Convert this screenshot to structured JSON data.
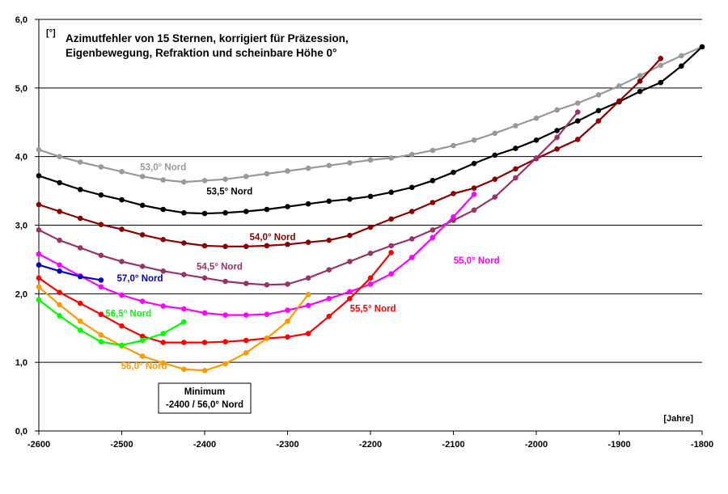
{
  "chart_data": {
    "type": "line",
    "title_lines": [
      "Azimutfehler von 15 Sternen, korrigiert für Präzession,",
      "Eigenbewegung, Refraktion und scheinbare Höhe 0°"
    ],
    "y_unit": "[°]",
    "x_unit": "[Jahre]",
    "xlim": [
      -2600,
      -1800
    ],
    "ylim": [
      0,
      6
    ],
    "x_ticks": [
      -2600,
      -2500,
      -2400,
      -2300,
      -2200,
      -2100,
      -2000,
      -1900,
      -1800
    ],
    "x_tick_labels": [
      "-2600",
      "-2500",
      "-2400",
      "-2300",
      "-2200",
      "-2100",
      "-2000",
      "-1900",
      "-1800"
    ],
    "y_ticks": [
      0,
      1,
      2,
      3,
      4,
      5,
      6
    ],
    "y_tick_labels": [
      "0,0",
      "1,0",
      "2,0",
      "3,0",
      "4,0",
      "5,0",
      "6,0"
    ],
    "grid": "horizontal",
    "annotation": {
      "lines": [
        "Minimum",
        "-2400 / 56,0° Nord"
      ],
      "x": -2400,
      "y": 0.88
    },
    "series": [
      {
        "name": "53,0° Nord",
        "color": "#999999",
        "x": [
          -2600,
          -2575,
          -2550,
          -2525,
          -2500,
          -2475,
          -2450,
          -2425,
          -2400,
          -2375,
          -2350,
          -2325,
          -2300,
          -2275,
          -2250,
          -2225,
          -2200,
          -2175,
          -2150,
          -2125,
          -2100,
          -2075,
          -2050,
          -2025,
          -2000,
          -1975,
          -1950,
          -1925,
          -1900,
          -1875,
          -1850,
          -1825,
          -1800
        ],
        "y": [
          4.1,
          4.0,
          3.92,
          3.85,
          3.78,
          3.71,
          3.66,
          3.63,
          3.65,
          3.67,
          3.71,
          3.75,
          3.79,
          3.83,
          3.87,
          3.91,
          3.95,
          3.98,
          4.03,
          4.09,
          4.16,
          4.24,
          4.34,
          4.45,
          4.56,
          4.68,
          4.78,
          4.9,
          5.03,
          5.18,
          5.33,
          5.47,
          5.6
        ]
      },
      {
        "name": "53,5° Nord",
        "color": "#000000",
        "x": [
          -2600,
          -2575,
          -2550,
          -2525,
          -2500,
          -2475,
          -2450,
          -2425,
          -2400,
          -2375,
          -2350,
          -2325,
          -2300,
          -2275,
          -2250,
          -2225,
          -2200,
          -2175,
          -2150,
          -2125,
          -2100,
          -2075,
          -2050,
          -2025,
          -2000,
          -1975,
          -1950,
          -1925,
          -1900,
          -1875,
          -1850,
          -1825,
          -1800
        ],
        "y": [
          3.72,
          3.62,
          3.52,
          3.44,
          3.37,
          3.29,
          3.23,
          3.18,
          3.17,
          3.18,
          3.2,
          3.23,
          3.27,
          3.31,
          3.35,
          3.38,
          3.42,
          3.48,
          3.55,
          3.65,
          3.77,
          3.9,
          4.02,
          4.12,
          4.24,
          4.38,
          4.52,
          4.67,
          4.8,
          4.95,
          5.08,
          5.32,
          5.6
        ]
      },
      {
        "name": "54,0° Nord",
        "color": "#8b0000",
        "x": [
          -2600,
          -2575,
          -2550,
          -2525,
          -2500,
          -2475,
          -2450,
          -2425,
          -2400,
          -2375,
          -2350,
          -2325,
          -2300,
          -2275,
          -2250,
          -2225,
          -2200,
          -2175,
          -2150,
          -2125,
          -2100,
          -2075,
          -2050,
          -2025,
          -2000,
          -1975,
          -1950,
          -1925,
          -1900,
          -1875,
          -1850
        ],
        "y": [
          3.3,
          3.2,
          3.1,
          3.01,
          2.94,
          2.86,
          2.79,
          2.74,
          2.7,
          2.69,
          2.69,
          2.7,
          2.72,
          2.75,
          2.78,
          2.85,
          2.97,
          3.09,
          3.2,
          3.33,
          3.46,
          3.54,
          3.67,
          3.82,
          3.97,
          4.11,
          4.25,
          4.52,
          4.81,
          5.1,
          5.43
        ]
      },
      {
        "name": "54,5° Nord",
        "color": "#993366",
        "x": [
          -2600,
          -2575,
          -2550,
          -2525,
          -2500,
          -2475,
          -2450,
          -2425,
          -2400,
          -2375,
          -2350,
          -2325,
          -2300,
          -2275,
          -2250,
          -2225,
          -2200,
          -2175,
          -2150,
          -2125,
          -2100,
          -2075,
          -2050,
          -2025,
          -2000,
          -1975,
          -1950
        ],
        "y": [
          2.93,
          2.78,
          2.67,
          2.56,
          2.47,
          2.4,
          2.33,
          2.28,
          2.23,
          2.18,
          2.15,
          2.13,
          2.14,
          2.23,
          2.35,
          2.47,
          2.59,
          2.7,
          2.8,
          2.93,
          3.07,
          3.22,
          3.41,
          3.69,
          3.98,
          4.28,
          4.65
        ]
      },
      {
        "name": "55,0° Nord",
        "color": "#ff00ff",
        "x": [
          -2600,
          -2575,
          -2550,
          -2525,
          -2500,
          -2475,
          -2450,
          -2425,
          -2400,
          -2375,
          -2350,
          -2325,
          -2300,
          -2275,
          -2250,
          -2225,
          -2200,
          -2175,
          -2150,
          -2125,
          -2100,
          -2075
        ],
        "y": [
          2.58,
          2.42,
          2.26,
          2.1,
          1.98,
          1.89,
          1.82,
          1.78,
          1.72,
          1.69,
          1.69,
          1.7,
          1.76,
          1.83,
          1.93,
          2.03,
          2.14,
          2.29,
          2.53,
          2.82,
          3.12,
          3.45
        ]
      },
      {
        "name": "55,5° Nord",
        "color": "#ff0000",
        "x": [
          -2600,
          -2575,
          -2550,
          -2525,
          -2500,
          -2475,
          -2450,
          -2425,
          -2400,
          -2375,
          -2350,
          -2325,
          -2300,
          -2275,
          -2250,
          -2225,
          -2200,
          -2175
        ],
        "y": [
          2.23,
          2.02,
          1.86,
          1.7,
          1.53,
          1.38,
          1.29,
          1.29,
          1.29,
          1.3,
          1.32,
          1.35,
          1.37,
          1.42,
          1.67,
          1.93,
          2.23,
          2.6
        ]
      },
      {
        "name": "56,0° Nord",
        "color": "#ff9900",
        "x": [
          -2600,
          -2575,
          -2550,
          -2525,
          -2500,
          -2475,
          -2450,
          -2425,
          -2400,
          -2375,
          -2350,
          -2325,
          -2300,
          -2275
        ],
        "y": [
          2.1,
          1.84,
          1.6,
          1.4,
          1.24,
          1.09,
          0.99,
          0.9,
          0.88,
          0.98,
          1.14,
          1.35,
          1.6,
          1.99
        ]
      },
      {
        "name": "56,5° Nord",
        "color": "#00ff00",
        "x": [
          -2600,
          -2575,
          -2550,
          -2525,
          -2500,
          -2475,
          -2450,
          -2425
        ],
        "y": [
          1.91,
          1.68,
          1.47,
          1.3,
          1.25,
          1.32,
          1.42,
          1.59
        ]
      },
      {
        "name": "57,0° Nord",
        "color": "#0000cc",
        "x": [
          -2600,
          -2575,
          -2550,
          -2525
        ],
        "y": [
          2.42,
          2.33,
          2.25,
          2.2
        ]
      }
    ]
  }
}
